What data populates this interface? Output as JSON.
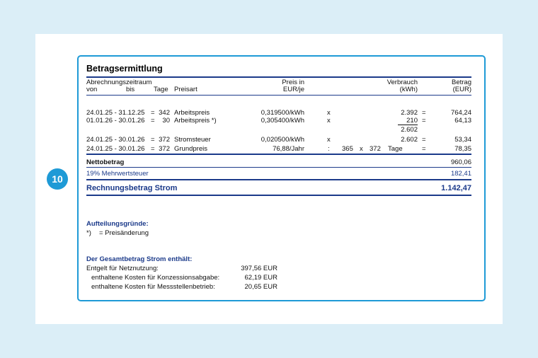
{
  "badge": "10",
  "title": "Betragsermittlung",
  "header": {
    "period": "Abrechnungszeitraum",
    "von": "von",
    "bis": "bis",
    "tage": "Tage",
    "preisart": "Preisart",
    "preis_l1": "Preis in",
    "preis_l2": "EUR/je",
    "verbrauch_l1": "Verbrauch",
    "verbrauch_l2": "(kWh)",
    "betrag_l1": "Betrag",
    "betrag_l2": "(EUR)"
  },
  "rows": [
    {
      "period": "24.01.25 - 31.12.25",
      "eq": "=",
      "days": "342",
      "type": "Arbeitspreis",
      "price": "0,319500/kWh",
      "op": "x",
      "consumption": "2.392",
      "eq2": "=",
      "amount": "764,24"
    },
    {
      "period": "01.01.26 - 30.01.26",
      "eq": "=",
      "days": "30",
      "type": "Arbeitspreis *)",
      "price": "0,305400/kWh",
      "op": "x",
      "consumption": "210",
      "eq2": "=",
      "amount": "64,13"
    },
    {
      "consumption": "2.602"
    },
    {
      "period": "24.01.25 - 30.01.26",
      "eq": "=",
      "days": "372",
      "type": "Stromsteuer",
      "price": "0,020500/kWh",
      "op": "x",
      "consumption": "2.602",
      "eq2": "=",
      "amount": "53,34"
    },
    {
      "period": "24.01.25 - 30.01.26",
      "eq": "=",
      "days": "372",
      "type": "Grundpreis",
      "price": "76,88/Jahr",
      "op": ":",
      "d1": "365",
      "op2": "x",
      "d2": "372",
      "unit": "Tage",
      "eq2": "=",
      "amount": "78,35"
    }
  ],
  "netto": {
    "label": "Nettobetrag",
    "value": "960,06"
  },
  "mwst": {
    "label": "19% Mehrwertsteuer",
    "value": "182,41"
  },
  "total": {
    "label": "Rechnungsbetrag Strom",
    "value": "1.142,47"
  },
  "reasons": {
    "title": "Aufteilungsgründe:",
    "mark": "*)",
    "text": "= Preisänderung"
  },
  "contains": {
    "title": "Der Gesamtbetrag Strom enthält:",
    "items": [
      {
        "label": "Entgelt für Netznutzung:",
        "value": "397,56 EUR"
      },
      {
        "label": "enthaltene Kosten für Konzessionsabgabe:",
        "value": "62,19 EUR"
      },
      {
        "label": "enthaltene Kosten für Messstellenbetrieb:",
        "value": "20,65 EUR"
      }
    ]
  }
}
